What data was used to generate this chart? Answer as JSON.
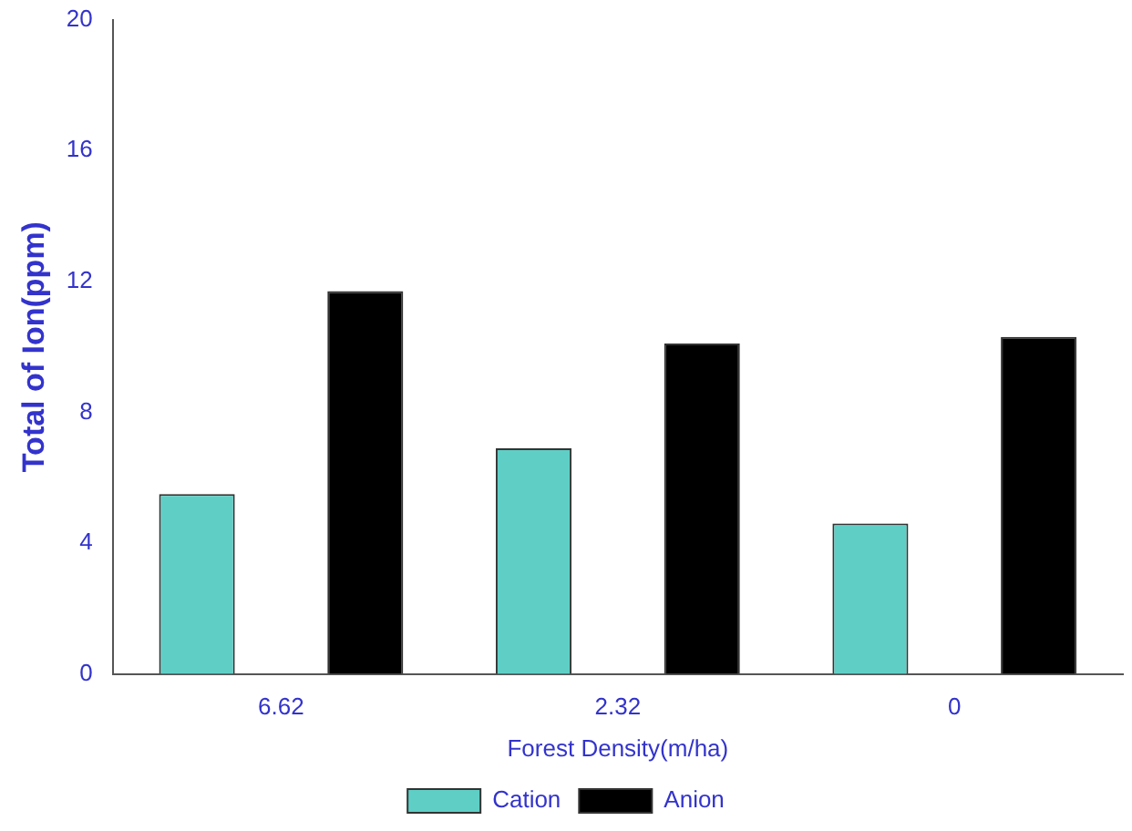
{
  "chart_data": {
    "type": "bar",
    "xlabel": "Forest Density(m/ha)",
    "ylabel": "Total of Ion(ppm)",
    "categories": [
      "6.62",
      "2.32",
      "0"
    ],
    "series": [
      {
        "name": "Cation",
        "color": "#5fcfc6",
        "values": [
          5.5,
          6.9,
          4.6
        ]
      },
      {
        "name": "Anion",
        "color": "#000000",
        "values": [
          11.7,
          10.1,
          10.3
        ]
      }
    ],
    "ylim": [
      0,
      20
    ],
    "yticks": [
      0,
      4,
      8,
      12,
      16,
      20
    ],
    "grid": false,
    "legend": "bottom"
  }
}
